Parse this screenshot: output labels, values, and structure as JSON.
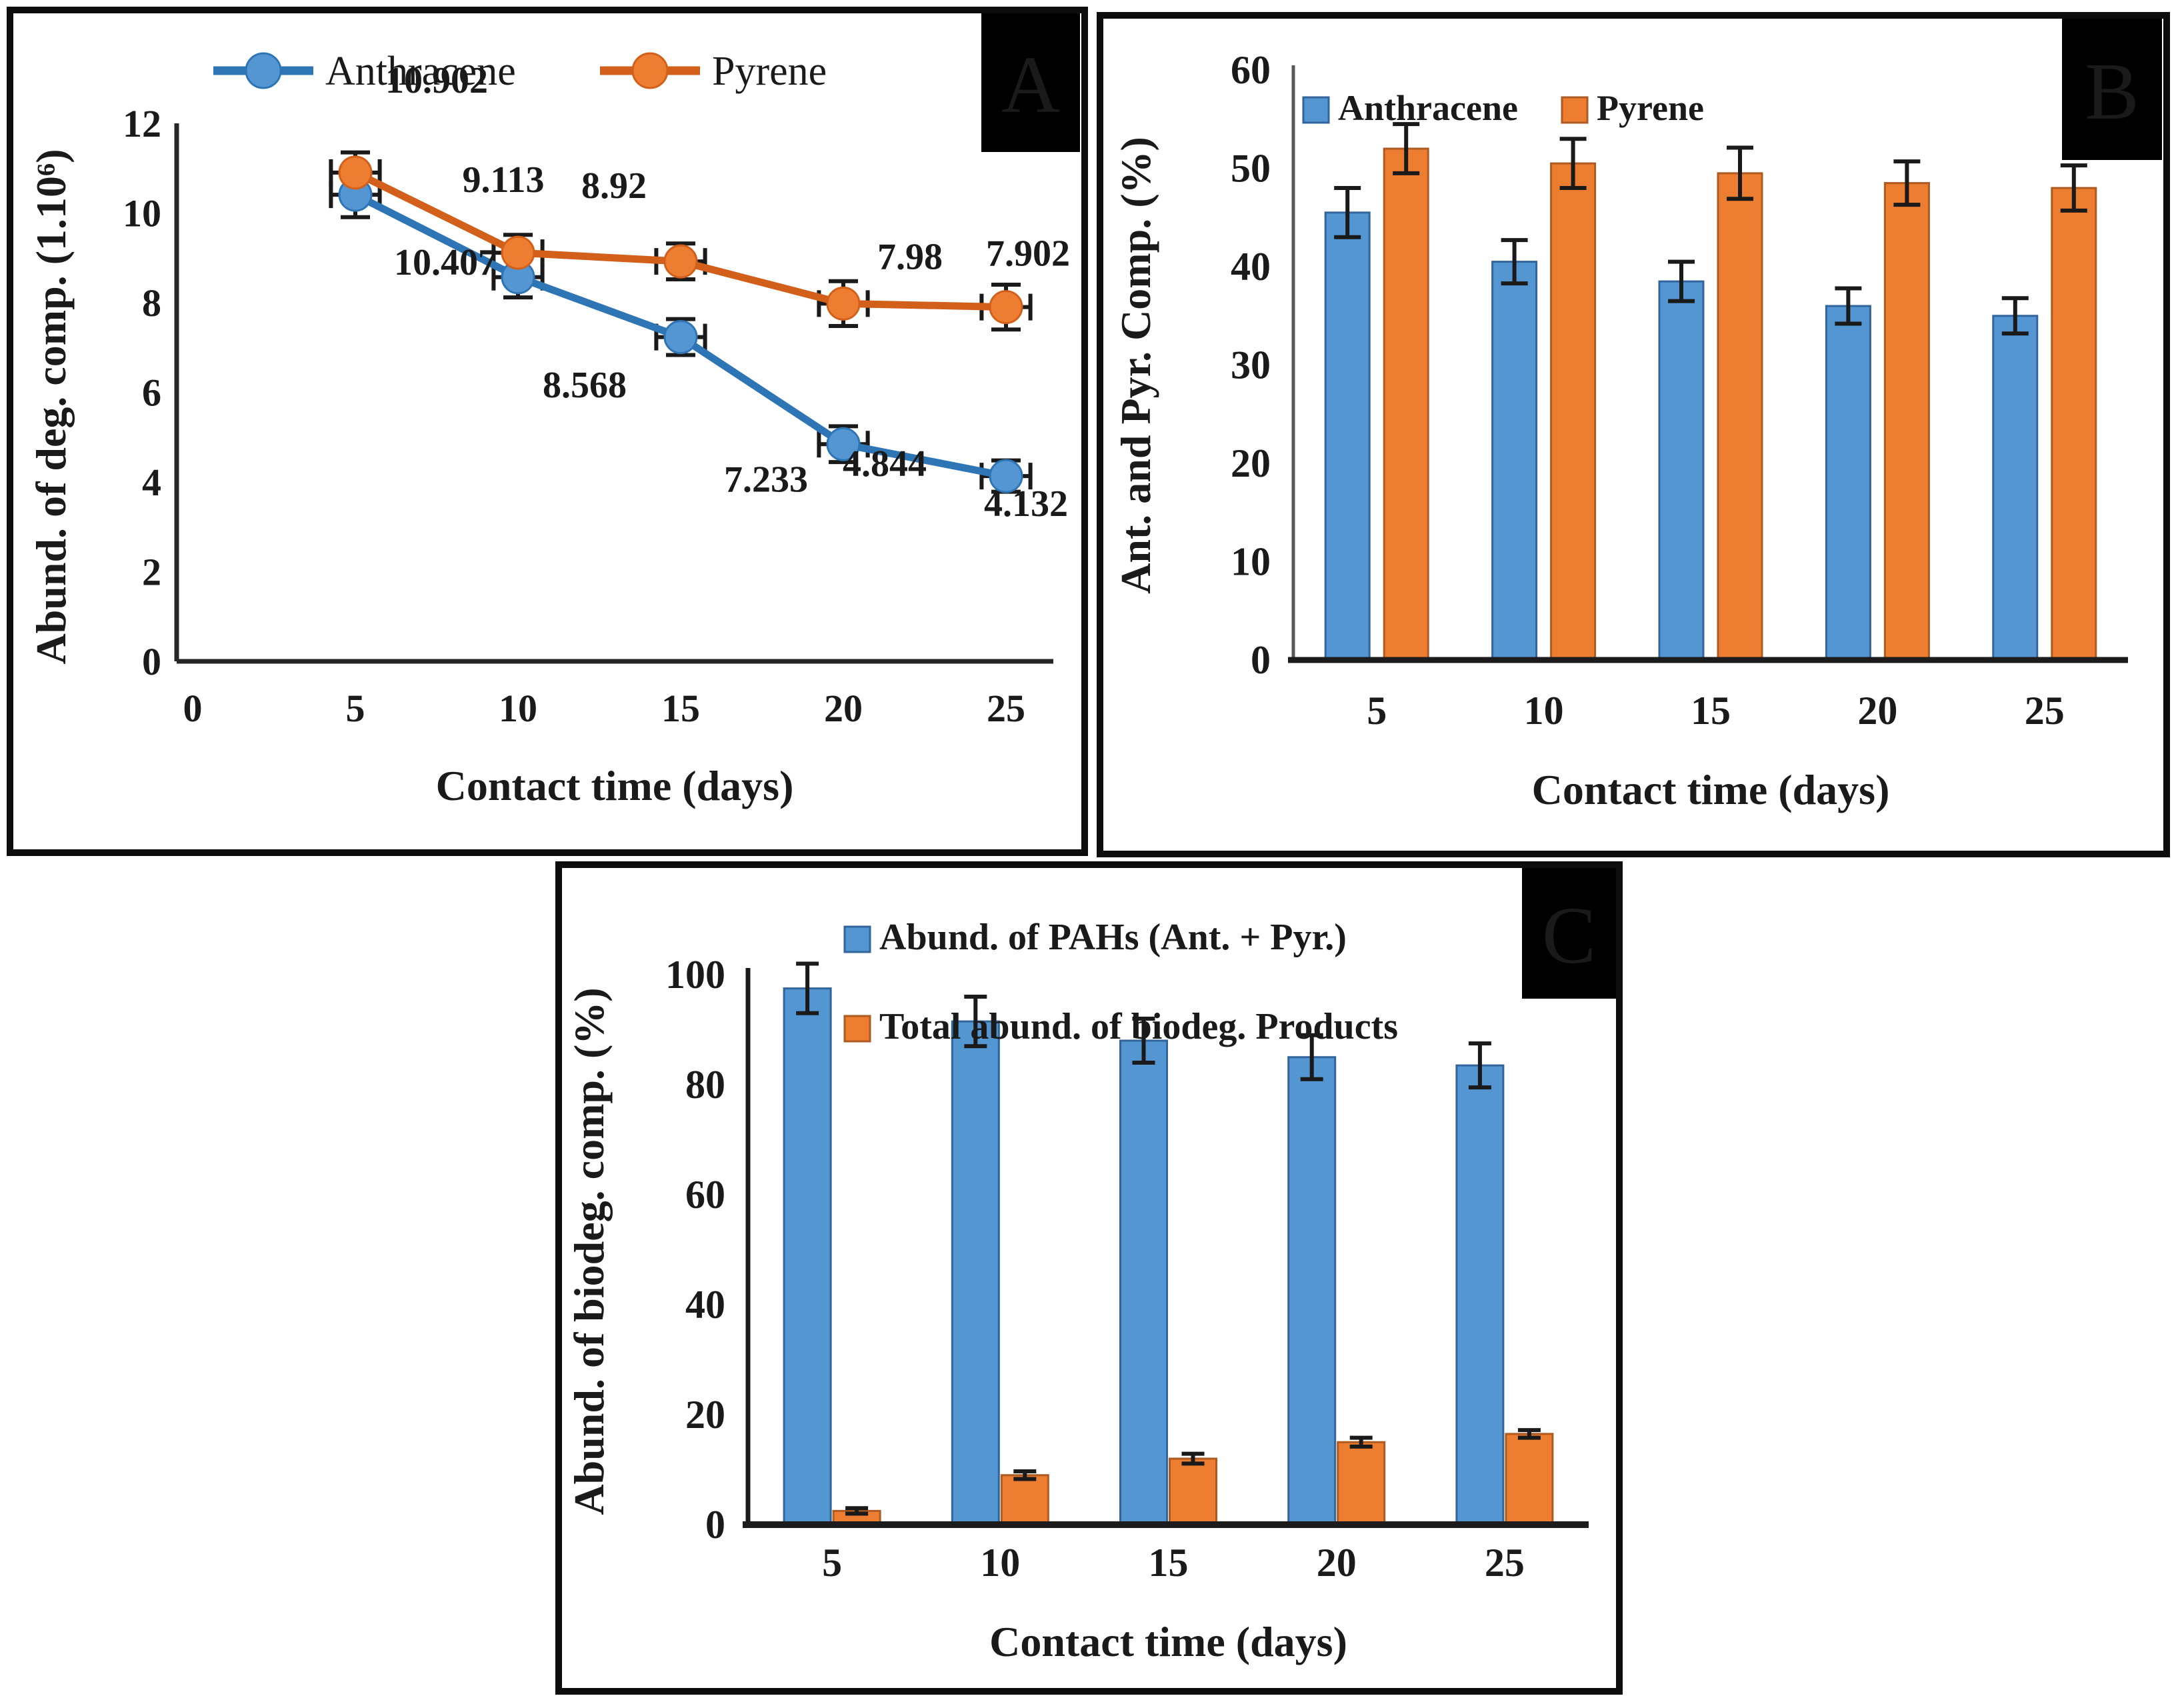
{
  "panels": {
    "A": {
      "label": "A",
      "chart_data": {
        "type": "line",
        "x": [
          5,
          10,
          15,
          20,
          25
        ],
        "xticks": [
          "0",
          "5",
          "10",
          "15",
          "20",
          "25"
        ],
        "yticks": [
          "0",
          "2",
          "4",
          "6",
          "8",
          "10",
          "12"
        ],
        "ylim": [
          0,
          12
        ],
        "xlabel": "Contact time (days)",
        "ylabel": "Abund. of deg. comp. (1.10⁶)",
        "legend_position": "top-center",
        "grid": false,
        "series": [
          {
            "name": "Anthracene",
            "color_key": "blue",
            "values": [
              10.407,
              8.568,
              7.233,
              4.844,
              4.132
            ],
            "point_labels": [
              "10.407",
              "8.568",
              "7.233",
              "4.844",
              "4.132"
            ],
            "yerr": [
              0.5,
              0.45,
              0.4,
              0.4,
              0.35
            ],
            "xerr": 0.75
          },
          {
            "name": "Pyrene",
            "color_key": "orange",
            "values": [
              10.902,
              9.113,
              8.92,
              7.98,
              7.902
            ],
            "point_labels": [
              "10.902",
              "9.113",
              "8.92",
              "7.98",
              "7.902"
            ],
            "yerr": [
              0.45,
              0.4,
              0.4,
              0.5,
              0.5
            ],
            "xerr": 0.75
          }
        ]
      }
    },
    "B": {
      "label": "B",
      "chart_data": {
        "type": "bar",
        "categories": [
          "5",
          "10",
          "15",
          "20",
          "25"
        ],
        "yticks": [
          "0",
          "10",
          "20",
          "30",
          "40",
          "50",
          "60"
        ],
        "ylim": [
          0,
          60
        ],
        "xlabel": "Contact time (days)",
        "ylabel": "Ant. and Pyr. Comp. (%)",
        "legend_position": "top-left",
        "grid": false,
        "series": [
          {
            "name": "Anthracene",
            "color_key": "blue",
            "values": [
              45.5,
              40.5,
              38.5,
              36,
              35
            ],
            "yerr": [
              2.5,
              2.2,
              2.0,
              1.8,
              1.8
            ]
          },
          {
            "name": "Pyrene",
            "color_key": "orange",
            "values": [
              52,
              50.5,
              49.5,
              48.5,
              48
            ],
            "yerr": [
              2.5,
              2.5,
              2.6,
              2.2,
              2.3
            ]
          }
        ]
      }
    },
    "C": {
      "label": "C",
      "chart_data": {
        "type": "bar",
        "categories": [
          "5",
          "10",
          "15",
          "20",
          "25"
        ],
        "yticks": [
          "0",
          "20",
          "40",
          "60",
          "80",
          "100"
        ],
        "ylim": [
          0,
          100
        ],
        "xlabel": "Contact time (days)",
        "ylabel": "Abund. of biodeg. comp. (%)",
        "legend_position": "top-center-stacked",
        "grid": false,
        "series": [
          {
            "name": "Abund. of PAHs (Ant. + Pyr.)",
            "color_key": "blue",
            "values": [
              97.5,
              91.5,
              88,
              85,
              83.5
            ],
            "yerr": [
              4.5,
              4.5,
              4.0,
              4.0,
              4.0
            ]
          },
          {
            "name": "Total abund. of biodeg. Products",
            "color_key": "orange",
            "values": [
              2.5,
              9,
              12,
              15,
              16.5
            ],
            "yerr": [
              0.5,
              0.7,
              0.9,
              0.8,
              0.7
            ]
          }
        ]
      }
    }
  },
  "colors": {
    "blue": "#5496D2",
    "blue_line": "#2E75B6",
    "blue_stroke": "#31659C",
    "orange": "#ED7D31",
    "orange_line": "#D2601A",
    "orange_stroke": "#AE5A21",
    "error_bar": "#1a1a1a",
    "panel_label_bg": "#000000",
    "panel_label_fg": "#ffffff"
  }
}
